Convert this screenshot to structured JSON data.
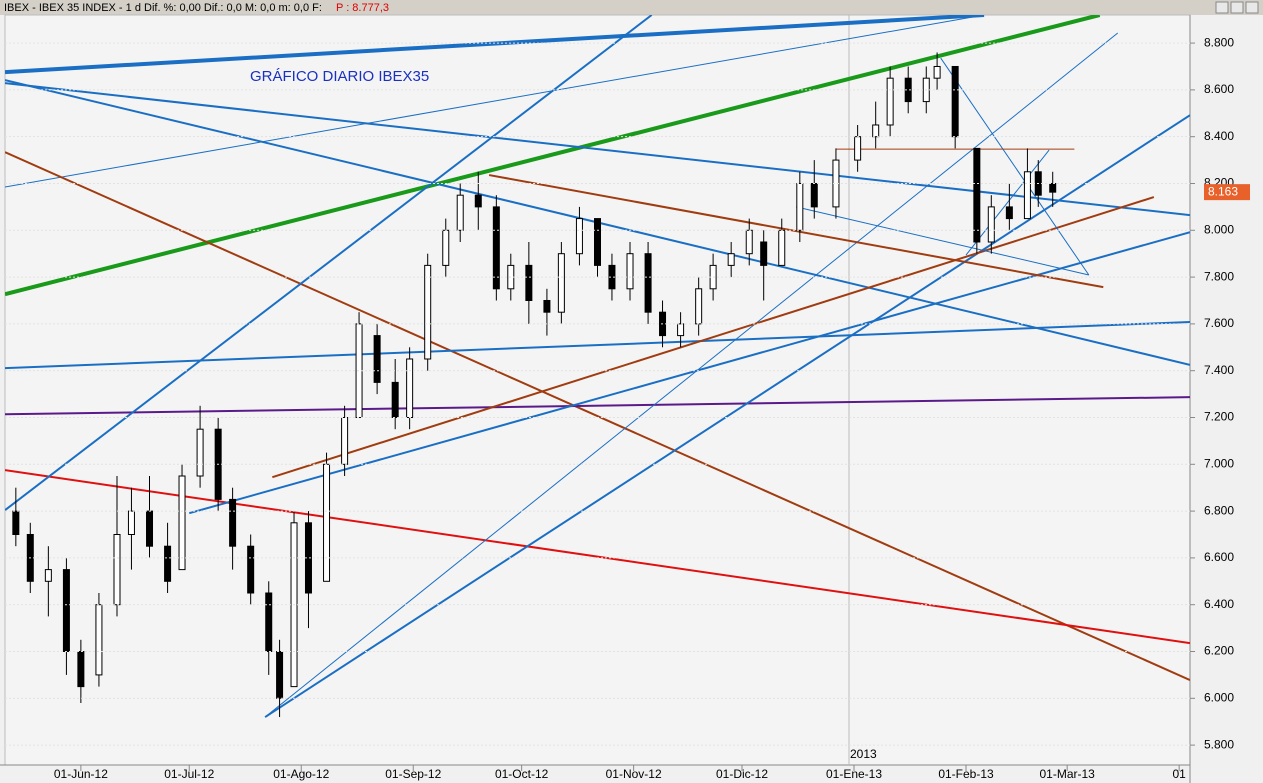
{
  "header": {
    "info": "IBEX - IBEX 35 INDEX - 1 d  Dif. %: 0,00  Dif.: 0,0  M: 0,0  m: 0,0  F:",
    "price": "P : 8.777,3"
  },
  "chart_data": {
    "type": "candlestick",
    "title": "GRÁFICO DIARIO IBEX35",
    "year_marker": "2013",
    "x": [
      "14-May-12",
      "18-May-12",
      "23-May-12",
      "28-May-12",
      "01-Jun-12",
      "06-Jun-12",
      "11-Jun-12",
      "15-Jun-12",
      "20-Jun-12",
      "25-Jun-12",
      "29-Jun-12",
      "04-Jul-12",
      "09-Jul-12",
      "13-Jul-12",
      "18-Jul-12",
      "23-Jul-12",
      "26-Jul-12",
      "30-Jul-12",
      "03-Ago-12",
      "08-Ago-12",
      "13-Ago-12",
      "17-Ago-12",
      "22-Ago-12",
      "27-Ago-12",
      "31-Ago-12",
      "05-Sep-12",
      "10-Sep-12",
      "14-Sep-12",
      "19-Sep-12",
      "24-Sep-12",
      "28-Sep-12",
      "03-Oct-12",
      "08-Oct-12",
      "12-Oct-12",
      "17-Oct-12",
      "22-Oct-12",
      "26-Oct-12",
      "31-Oct-12",
      "05-Nov-12",
      "09-Nov-12",
      "14-Nov-12",
      "19-Nov-12",
      "23-Nov-12",
      "28-Nov-12",
      "03-Dic-12",
      "07-Dic-12",
      "12-Dic-12",
      "17-Dic-12",
      "21-Dic-12",
      "27-Dic-12",
      "02-Ene-13",
      "07-Ene-13",
      "11-Ene-13",
      "16-Ene-13",
      "21-Ene-13",
      "24-Ene-13",
      "29-Ene-13",
      "04-Feb-13",
      "08-Feb-13",
      "13-Feb-13",
      "18-Feb-13",
      "21-Feb-13",
      "25-Feb-13"
    ],
    "open": [
      6800,
      6700,
      6500,
      6550,
      6200,
      6100,
      6400,
      6700,
      6800,
      6650,
      6550,
      6950,
      7150,
      6850,
      6650,
      6450,
      6200,
      6050,
      6750,
      6500,
      7000,
      7200,
      7550,
      7350,
      7200,
      7450,
      7850,
      8000,
      8150,
      8100,
      7750,
      7850,
      7700,
      7650,
      7900,
      8050,
      7850,
      7750,
      7900,
      7650,
      7550,
      7600,
      7750,
      7850,
      7900,
      7950,
      7850,
      8000,
      8200,
      8100,
      8300,
      8400,
      8450,
      8650,
      8550,
      8650,
      8700,
      8350,
      7950,
      8100,
      8050,
      8250,
      8200
    ],
    "high": [
      6900,
      6750,
      6650,
      6600,
      6250,
      6450,
      6950,
      6900,
      6950,
      6750,
      7000,
      7250,
      7200,
      6900,
      6700,
      6500,
      6250,
      6800,
      6800,
      7050,
      7250,
      7650,
      7600,
      7450,
      7500,
      7900,
      8050,
      8200,
      8250,
      8150,
      7900,
      7950,
      7750,
      7950,
      8100,
      8050,
      7900,
      7950,
      7950,
      7700,
      7650,
      7800,
      7900,
      7950,
      8050,
      8000,
      8050,
      8250,
      8300,
      8350,
      8450,
      8550,
      8700,
      8700,
      8700,
      8760,
      8700,
      8350,
      8150,
      8200,
      8350,
      8300,
      8250
    ],
    "low": [
      6650,
      6450,
      6350,
      6100,
      5980,
      6050,
      6350,
      6550,
      6600,
      6450,
      6550,
      6900,
      6800,
      6550,
      6400,
      6100,
      5920,
      6050,
      6300,
      6500,
      6950,
      7200,
      7300,
      7150,
      7150,
      7400,
      7800,
      7950,
      8000,
      7700,
      7700,
      7600,
      7550,
      7600,
      7850,
      7800,
      7700,
      7700,
      7600,
      7500,
      7500,
      7550,
      7700,
      7800,
      7850,
      7700,
      7850,
      7950,
      8050,
      8050,
      8250,
      8350,
      8400,
      8500,
      8500,
      8600,
      8350,
      7900,
      7900,
      8000,
      8050,
      8100,
      8100
    ],
    "close": [
      6700,
      6500,
      6550,
      6200,
      6050,
      6400,
      6700,
      6800,
      6650,
      6500,
      6950,
      7150,
      6850,
      6650,
      6450,
      6200,
      6000,
      6750,
      6450,
      7000,
      7200,
      7600,
      7350,
      7200,
      7450,
      7850,
      8000,
      8150,
      8100,
      7750,
      7850,
      7700,
      7650,
      7900,
      8050,
      7850,
      7750,
      7900,
      7650,
      7550,
      7600,
      7750,
      7850,
      7900,
      8000,
      7850,
      8000,
      8200,
      8100,
      8300,
      8400,
      8450,
      8650,
      8550,
      8650,
      8700,
      8400,
      7950,
      8100,
      8050,
      8250,
      8150,
      8163
    ],
    "xlim": [
      "11-May-12",
      "04-Abr-13"
    ],
    "xticks": [
      "01-Jun-12",
      "01-Jul-12",
      "01-Ago-12",
      "01-Sep-12",
      "01-Oct-12",
      "01-Nov-12",
      "01-Dic-12",
      "01-Ene-13",
      "01-Feb-13",
      "01-Mar-13",
      {
        "value": "01-Abr-13",
        "label": "01"
      }
    ],
    "ylim": [
      5715,
      8920
    ],
    "yticks": [
      {
        "value": 5800,
        "label": "5.800"
      },
      {
        "value": 6000,
        "label": "6.000"
      },
      {
        "value": 6200,
        "label": "6.200"
      },
      {
        "value": 6400,
        "label": "6.400"
      },
      {
        "value": 6600,
        "label": "6.600"
      },
      {
        "value": 6800,
        "label": "6.800"
      },
      {
        "value": 7000,
        "label": "7.000"
      },
      {
        "value": 7200,
        "label": "7.200"
      },
      {
        "value": 7400,
        "label": "7.400"
      },
      {
        "value": 7600,
        "label": "7.600"
      },
      {
        "value": 7800,
        "label": "7.800"
      },
      {
        "value": 8000,
        "label": "8.000"
      },
      {
        "value": 8200,
        "label": "8.200"
      },
      {
        "value": 8400,
        "label": "8.400"
      },
      {
        "value": 8600,
        "label": "8.600"
      },
      {
        "value": 8800,
        "label": "8.800"
      }
    ],
    "last_price": {
      "value": 8163,
      "label": "8.163"
    },
    "up_color": "#ffffff",
    "down_color": "#000000",
    "lines": [
      {
        "color": "#1a6fc4",
        "width": 4,
        "x": [
          "11-May-12",
          "06-Feb-13"
        ],
        "y": [
          8676,
          8920
        ]
      },
      {
        "color": "#1a6fc4",
        "width": 1,
        "x": [
          "11-May-12",
          "06-Feb-13"
        ],
        "y": [
          8185,
          8920
        ]
      },
      {
        "color": "#1a9a1a",
        "width": 4,
        "x": [
          "11-May-12",
          "10-Mar-13"
        ],
        "y": [
          7727,
          8920
        ]
      },
      {
        "color": "#1a6fc4",
        "width": 2,
        "x": [
          "11-May-12",
          "04-Abr-13"
        ],
        "y": [
          8629,
          8065
        ]
      },
      {
        "color": "#1a6fc4",
        "width": 2,
        "x": [
          "11-May-12",
          "04-Abr-13"
        ],
        "y": [
          8642,
          7425
        ]
      },
      {
        "color": "#a03c10",
        "width": 2,
        "x": [
          "11-May-12",
          "04-Abr-13"
        ],
        "y": [
          8334,
          6078
        ]
      },
      {
        "color": "#e01010",
        "width": 2,
        "x": [
          "11-May-12",
          "04-Abr-13"
        ],
        "y": [
          6975,
          6236
        ]
      },
      {
        "color": "#5a1a8a",
        "width": 2,
        "x": [
          "11-May-12",
          "04-Abr-13"
        ],
        "y": [
          7214,
          7287
        ]
      },
      {
        "color": "#1a6fc4",
        "width": 2,
        "x": [
          "11-May-12",
          "04-Abr-13"
        ],
        "y": [
          7411,
          7608
        ]
      },
      {
        "color": "#1a6fc4",
        "width": 2,
        "x": [
          "01-Jul-12",
          "04-Abr-13"
        ],
        "y": [
          6791,
          7992
        ]
      },
      {
        "color": "#1a6fc4",
        "width": 2,
        "x": [
          "11-May-12",
          "06-Nov-12"
        ],
        "y": [
          6804,
          8920
        ]
      },
      {
        "color": "#1a6fc4",
        "width": 2,
        "x": [
          "22-Jul-12",
          "04-Abr-13"
        ],
        "y": [
          5920,
          8492
        ]
      },
      {
        "color": "#1a6fc4",
        "width": 1,
        "x": [
          "22-Jul-12",
          "15-Mar-13"
        ],
        "y": [
          5920,
          8843
        ]
      },
      {
        "color": "#a03c10",
        "width": 2,
        "x": [
          "24-Jul-12",
          "25-Mar-13"
        ],
        "y": [
          6945,
          8142
        ]
      },
      {
        "color": "#a03c10",
        "width": 2,
        "x": [
          "22-Sep-12",
          "11-Mar-13"
        ],
        "y": [
          8236,
          7757
        ]
      },
      {
        "color": "#1a6fc4",
        "width": 1,
        "x": [
          "16-Dic-12",
          "07-Mar-13"
        ],
        "y": [
          8100,
          7809
        ]
      },
      {
        "color": "#1a6fc4",
        "width": 1,
        "x": [
          "25-Ene-13",
          "07-Mar-13"
        ],
        "y": [
          8736,
          7809
        ]
      },
      {
        "color": "#a03c10",
        "width": 1,
        "x": [
          "27-Dic-12",
          "03-Mar-13"
        ],
        "y": [
          8347,
          8347
        ]
      },
      {
        "color": "#1a6fc4",
        "width": 1,
        "x": [
          "01-Feb-13",
          "24-Feb-13"
        ],
        "y": [
          7894,
          8343
        ]
      }
    ]
  }
}
